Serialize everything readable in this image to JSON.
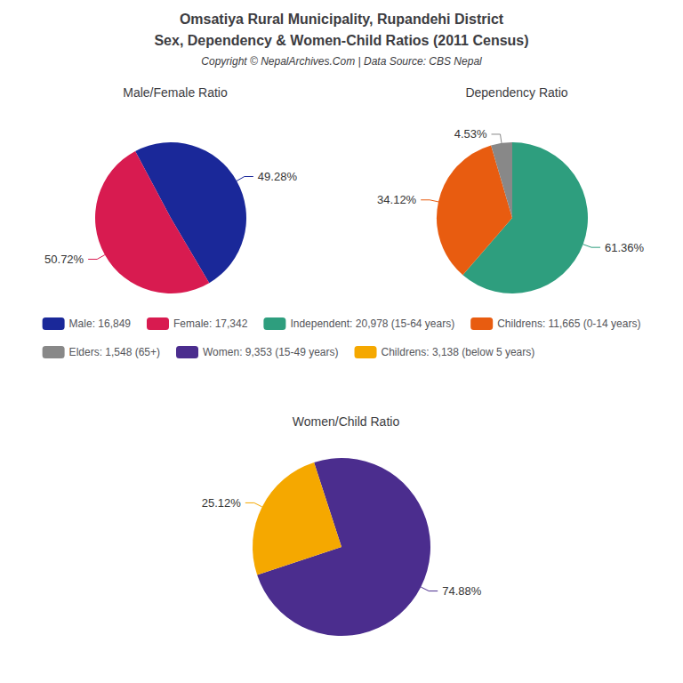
{
  "title": "Omsatiya Rural Municipality, Rupandehi District",
  "subtitle": "Sex, Dependency & Women-Child Ratios (2011 Census)",
  "annotations": [
    "Copyright © NepalArchives.Com | Data Source: CBS Nepal"
  ],
  "chart_data": [
    {
      "type": "pie",
      "title": "Male/Female Ratio",
      "categories": [
        "Male: 16,849",
        "Female: 17,342"
      ],
      "values": [
        49.28,
        50.72
      ],
      "value_labels": [
        "49.28%",
        "50.72%"
      ],
      "colors": [
        "#1a2899",
        "#d81b50"
      ],
      "data_labels": true,
      "legend": "center"
    },
    {
      "type": "pie",
      "title": "Dependency Ratio",
      "categories": [
        "Independent: 20,978 (15-64 years)",
        "Childrens: 11,665 (0-14 years)",
        "Elders: 1,548 (65+)"
      ],
      "values": [
        61.36,
        34.12,
        4.53
      ],
      "value_labels": [
        "61.36%",
        "34.12%",
        "4.53%"
      ],
      "colors": [
        "#2e9e7e",
        "#e85c10",
        "#888888"
      ],
      "data_labels": true,
      "legend": "center"
    },
    {
      "type": "pie",
      "title": "Women/Child Ratio",
      "categories": [
        "Women: 9,353 (15-49 years)",
        "Childrens: 3,138 (below 5 years)"
      ],
      "values": [
        74.88,
        25.12
      ],
      "value_labels": [
        "74.88%",
        "25.12%"
      ],
      "colors": [
        "#4b2d8e",
        "#f5a800"
      ],
      "data_labels": true,
      "legend": "center"
    }
  ]
}
